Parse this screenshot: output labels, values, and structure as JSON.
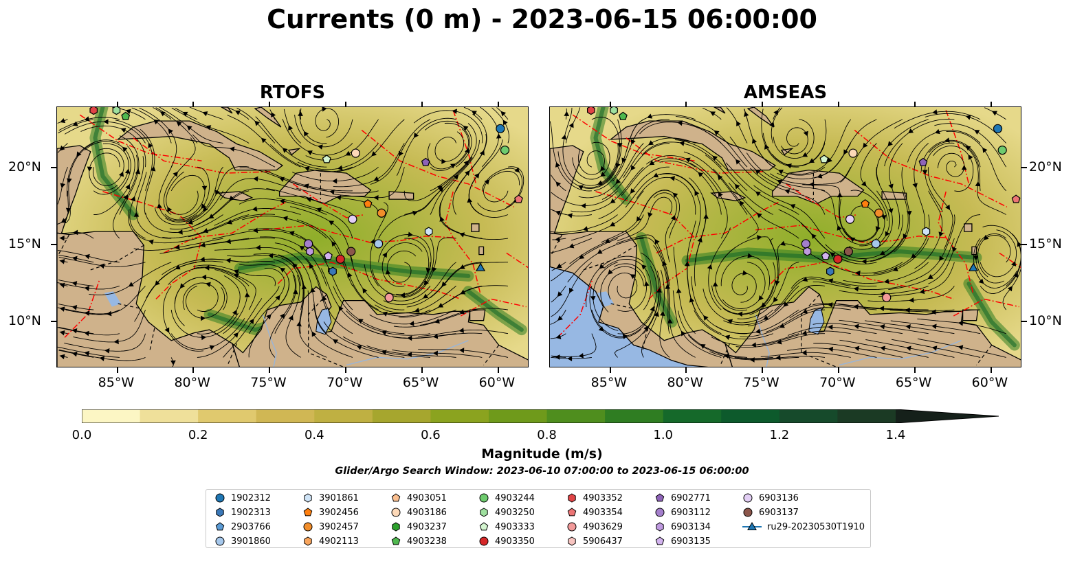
{
  "title": "Currents (0 m) - 2023-06-15 06:00:00",
  "panels": [
    {
      "title": "RTOFS"
    },
    {
      "title": "AMSEAS"
    }
  ],
  "map": {
    "lon_range": [
      -89,
      -58
    ],
    "lat_range": [
      7,
      24
    ],
    "lon_ticks": [
      "85°W",
      "80°W",
      "75°W",
      "70°W",
      "65°W",
      "60°W"
    ],
    "lat_ticks": [
      "20°N",
      "15°N",
      "10°N"
    ],
    "land_color": "#cfb28b",
    "pacific_color": "#97b8e3",
    "eez_color": "#ff0000",
    "streamline_color": "#000000"
  },
  "colorbar": {
    "label": "Magnitude (m/s)",
    "ticks": [
      "0.0",
      "0.2",
      "0.4",
      "0.6",
      "0.8",
      "1.0",
      "1.2",
      "1.4"
    ],
    "range": [
      0,
      1.5
    ],
    "colors": [
      "#fcf6c4",
      "#efe09a",
      "#e0c96e",
      "#d0b754",
      "#bfb042",
      "#a6a62e",
      "#8ba31f",
      "#6f9a1b",
      "#4f8e1e",
      "#2f7d22",
      "#15692a",
      "#0d5a2c",
      "#164a2b",
      "#1b3a24",
      "#1a2a18",
      "#15201a"
    ]
  },
  "search_window": "Glider/Argo Search Window: 2023-06-10 07:00:00 to 2023-06-15 06:00:00",
  "legend": [
    {
      "label": "1902312",
      "marker": "circle",
      "color": "#1f77b4"
    },
    {
      "label": "1902313",
      "marker": "hexagon",
      "color": "#3a78b8"
    },
    {
      "label": "2903766",
      "marker": "pentagon",
      "color": "#5b9bd5"
    },
    {
      "label": "3901860",
      "marker": "circle",
      "color": "#a6c8ec"
    },
    {
      "label": "3901861",
      "marker": "hexagon",
      "color": "#cfe4f7"
    },
    {
      "label": "3902456",
      "marker": "pentagon",
      "color": "#ff7f0e"
    },
    {
      "label": "3902457",
      "marker": "circle",
      "color": "#f28e2b"
    },
    {
      "label": "4902113",
      "marker": "hexagon",
      "color": "#f9a55c"
    },
    {
      "label": "4903051",
      "marker": "pentagon",
      "color": "#fbbf8f"
    },
    {
      "label": "4903186",
      "marker": "circle",
      "color": "#fdd9b8"
    },
    {
      "label": "4903237",
      "marker": "hexagon",
      "color": "#2ca02c"
    },
    {
      "label": "4903238",
      "marker": "pentagon",
      "color": "#4fb84f"
    },
    {
      "label": "4903244",
      "marker": "circle",
      "color": "#6ecb6e"
    },
    {
      "label": "4903250",
      "marker": "hexagon",
      "color": "#9fe09f"
    },
    {
      "label": "4903333",
      "marker": "pentagon",
      "color": "#d4f5d0"
    },
    {
      "label": "4903350",
      "marker": "circle",
      "color": "#d62728"
    },
    {
      "label": "4903352",
      "marker": "hexagon",
      "color": "#e04446"
    },
    {
      "label": "4903354",
      "marker": "pentagon",
      "color": "#ec7575"
    },
    {
      "label": "4903629",
      "marker": "circle",
      "color": "#f29a9a"
    },
    {
      "label": "5906437",
      "marker": "hexagon",
      "color": "#f7c4c0"
    },
    {
      "label": "6902771",
      "marker": "pentagon",
      "color": "#8e63b8"
    },
    {
      "label": "6903112",
      "marker": "circle",
      "color": "#a47fcc"
    },
    {
      "label": "6903134",
      "marker": "hexagon",
      "color": "#bf9ae0"
    },
    {
      "label": "6903135",
      "marker": "pentagon",
      "color": "#d2b3ee"
    },
    {
      "label": "6903136",
      "marker": "circle",
      "color": "#e3cff5"
    },
    {
      "label": "6903137",
      "marker": "circle",
      "color": "#8c564b"
    },
    {
      "label": "ru29-20230530T1910",
      "marker": "triangle-line",
      "color": "#1f77b4"
    }
  ],
  "floats": [
    {
      "id": "3901860",
      "lon": -67.9,
      "lat": 15.1
    },
    {
      "id": "3901861",
      "lon": -64.6,
      "lat": 15.9
    },
    {
      "id": "3902457",
      "lon": -67.7,
      "lat": 17.1
    },
    {
      "id": "3902456",
      "lon": -68.6,
      "lat": 17.7
    },
    {
      "id": "6903136",
      "lon": -69.6,
      "lat": 16.7
    },
    {
      "id": "4903186",
      "lon": -69.4,
      "lat": 21.0
    },
    {
      "id": "4903333",
      "lon": -71.3,
      "lat": 20.6
    },
    {
      "id": "6902771",
      "lon": -64.8,
      "lat": 20.4
    },
    {
      "id": "1902312",
      "lon": -59.9,
      "lat": 22.6
    },
    {
      "id": "4903244",
      "lon": -59.6,
      "lat": 21.2
    },
    {
      "id": "4903354",
      "lon": -58.7,
      "lat": 18.0
    },
    {
      "id": "6903112",
      "lon": -72.5,
      "lat": 15.1
    },
    {
      "id": "6903134",
      "lon": -72.4,
      "lat": 14.6
    },
    {
      "id": "6903135",
      "lon": -71.2,
      "lat": 14.3
    },
    {
      "id": "6903137",
      "lon": -69.7,
      "lat": 14.6
    },
    {
      "id": "4903350",
      "lon": -70.4,
      "lat": 14.1
    },
    {
      "id": "1902313",
      "lon": -70.9,
      "lat": 13.3
    },
    {
      "id": "4903629",
      "lon": -67.2,
      "lat": 11.6
    },
    {
      "id": "4903238",
      "lon": -84.5,
      "lat": 23.4
    },
    {
      "id": "4903250",
      "lon": -85.1,
      "lat": 23.8
    },
    {
      "id": "4903352",
      "lon": -86.6,
      "lat": 23.8
    }
  ],
  "glider": {
    "id": "ru29-20230530T1910",
    "lon": -61.2,
    "lat": 13.5
  }
}
